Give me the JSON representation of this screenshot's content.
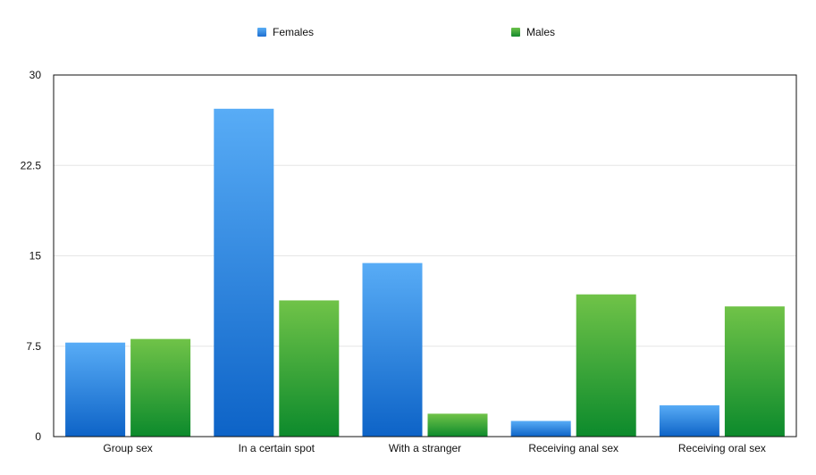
{
  "chart_data": {
    "type": "bar",
    "categories": [
      "Group sex",
      "In a certain spot",
      "With a stranger",
      "Receiving anal sex",
      "Receiving oral sex"
    ],
    "series": [
      {
        "name": "Females",
        "values": [
          7.8,
          27.2,
          14.4,
          1.3,
          2.6
        ],
        "color": "#2f86e0"
      },
      {
        "name": "Males",
        "values": [
          8.1,
          11.3,
          1.9,
          11.8,
          10.8
        ],
        "color": "#3aa83a"
      }
    ],
    "ylim": [
      0,
      30
    ],
    "yticks": [
      "0",
      "7.5",
      "15",
      "22.5",
      "30"
    ],
    "grid": true,
    "legend_position": "top"
  },
  "legend": {
    "females_label": "Females",
    "males_label": "Males"
  }
}
